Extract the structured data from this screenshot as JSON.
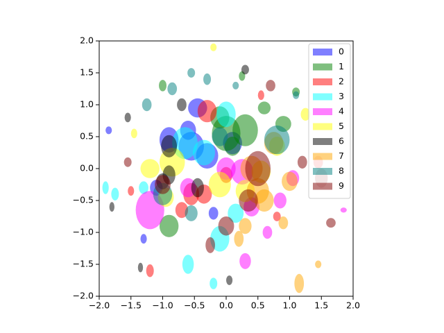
{
  "chart_data": {
    "type": "ellipse",
    "xlim": [
      -2,
      2
    ],
    "ylim": [
      -2,
      2
    ],
    "xticks": [
      {
        "value": -2,
        "label": "−2.0"
      },
      {
        "value": -1.5,
        "label": "−1.5"
      },
      {
        "value": -1,
        "label": "−1.0"
      },
      {
        "value": -0.5,
        "label": "−0.5"
      },
      {
        "value": 0,
        "label": "0.0"
      },
      0.5,
      {
        "value": 1,
        "label": "1.0"
      },
      1.5,
      {
        "value": 2,
        "label": "2.0"
      }
    ],
    "yticks": [
      {
        "value": -2,
        "label": "−2.0"
      },
      {
        "value": -1.5,
        "label": "−1.5"
      },
      {
        "value": -1,
        "label": "−1.0"
      },
      {
        "value": -0.5,
        "label": "−0.5"
      },
      {
        "value": 0,
        "label": "0.0"
      },
      0.5,
      {
        "value": 1,
        "label": "1.0"
      },
      1.5,
      {
        "value": 2,
        "label": "2.0"
      }
    ],
    "alpha": 0.5,
    "legend": "upper right",
    "series": [
      {
        "name": "0",
        "color": "#0000ff",
        "x": [
          -1.85,
          -0.9,
          -0.55,
          -0.3,
          -0.6,
          0.1,
          -1.1,
          -0.2,
          -0.45,
          -1.3
        ],
        "y": [
          0.6,
          0.45,
          0.35,
          0.2,
          0.6,
          0.4,
          -0.3,
          -0.7,
          0.95,
          -1.1
        ],
        "widths": [
          0.1,
          0.3,
          0.4,
          0.35,
          0.25,
          0.3,
          0.2,
          0.15,
          0.3,
          0.1
        ],
        "heights": [
          0.12,
          0.4,
          0.45,
          0.4,
          0.3,
          0.35,
          0.25,
          0.2,
          0.3,
          0.15
        ]
      },
      {
        "name": "1",
        "color": "#008000",
        "x": [
          0.3,
          -0.1,
          0.1,
          0.6,
          -0.9,
          0.9,
          1.1,
          0.0,
          0.25,
          -1.0
        ],
        "y": [
          0.6,
          0.8,
          0.35,
          0.95,
          -0.9,
          0.7,
          1.2,
          0.55,
          1.45,
          1.3
        ],
        "widths": [
          0.4,
          0.3,
          0.25,
          0.2,
          0.3,
          0.25,
          0.12,
          0.45,
          0.1,
          0.12
        ],
        "heights": [
          0.5,
          0.35,
          0.3,
          0.2,
          0.35,
          0.25,
          0.14,
          0.55,
          0.15,
          0.18
        ]
      },
      {
        "name": "2",
        "color": "#ff0000",
        "x": [
          -0.3,
          -0.35,
          0.0,
          -0.7,
          -1.2,
          0.55,
          1.45,
          -0.55,
          -1.5,
          0.8
        ],
        "y": [
          0.9,
          -0.4,
          -0.1,
          -0.65,
          -1.6,
          1.15,
          0.1,
          -0.4,
          -0.35,
          -0.75
        ],
        "widths": [
          0.3,
          0.25,
          0.2,
          0.2,
          0.12,
          0.1,
          0.15,
          0.25,
          0.1,
          0.12
        ],
        "heights": [
          0.35,
          0.3,
          0.25,
          0.25,
          0.2,
          0.15,
          0.2,
          0.35,
          0.15,
          0.15
        ]
      },
      {
        "name": "3",
        "color": "#00ffff",
        "x": [
          -0.35,
          0.0,
          -1.75,
          -0.6,
          -0.1,
          -1.3,
          -1.9,
          0.15,
          -0.65,
          -0.2
        ],
        "y": [
          0.25,
          0.85,
          -0.4,
          -1.5,
          -1.1,
          -0.3,
          -0.3,
          -0.7,
          0.4,
          -1.8
        ],
        "widths": [
          0.35,
          0.3,
          0.12,
          0.18,
          0.3,
          0.15,
          0.1,
          0.25,
          0.4,
          0.12
        ],
        "heights": [
          0.4,
          0.4,
          0.2,
          0.3,
          0.4,
          0.2,
          0.2,
          0.3,
          0.5,
          0.18
        ]
      },
      {
        "name": "4",
        "color": "#ff00ff",
        "x": [
          -1.2,
          0.4,
          0.3,
          1.05,
          0.0,
          0.85,
          1.85,
          0.65,
          -0.6,
          0.25
        ],
        "y": [
          -0.65,
          -0.6,
          -1.45,
          -0.15,
          0.0,
          -0.5,
          -0.65,
          -1.0,
          -0.3,
          -0.05
        ],
        "widths": [
          0.45,
          0.25,
          0.18,
          0.2,
          0.3,
          0.2,
          0.1,
          0.15,
          0.25,
          0.35
        ],
        "heights": [
          0.6,
          0.3,
          0.25,
          0.25,
          0.35,
          0.25,
          0.08,
          0.2,
          0.3,
          0.4
        ]
      },
      {
        "name": "5",
        "color": "#ffff00",
        "x": [
          -0.85,
          -0.1,
          -1.2,
          1.25,
          0.55,
          -1.45,
          0.8,
          -0.2,
          -0.95,
          0.3
        ],
        "y": [
          0.1,
          -0.25,
          0.0,
          0.85,
          -0.05,
          0.55,
          0.35,
          1.9,
          -0.45,
          -0.35
        ],
        "widths": [
          0.4,
          0.35,
          0.3,
          0.15,
          0.3,
          0.1,
          0.25,
          0.1,
          0.25,
          0.3
        ],
        "heights": [
          0.45,
          0.4,
          0.3,
          0.2,
          0.35,
          0.15,
          0.3,
          0.12,
          0.3,
          0.35
        ]
      },
      {
        "name": "6",
        "color": "#000000",
        "x": [
          -0.9,
          -1.55,
          -1.0,
          -0.45,
          -0.7,
          0.3,
          -1.8,
          -1.35,
          -0.9,
          0.05
        ],
        "y": [
          0.35,
          0.8,
          -0.2,
          -0.3,
          1.0,
          1.55,
          -0.6,
          -1.55,
          -0.1,
          -1.75
        ],
        "widths": [
          0.25,
          0.1,
          0.2,
          0.2,
          0.15,
          0.12,
          0.08,
          0.08,
          0.2,
          0.1
        ],
        "heights": [
          0.35,
          0.15,
          0.25,
          0.3,
          0.2,
          0.15,
          0.15,
          0.15,
          0.3,
          0.15
        ]
      },
      {
        "name": "7",
        "color": "#ffa500",
        "x": [
          0.5,
          1.15,
          0.6,
          0.3,
          1.0,
          0.9,
          0.75,
          1.45,
          0.4,
          0.2
        ],
        "y": [
          -0.35,
          -1.8,
          -0.5,
          -0.9,
          -0.2,
          -0.85,
          0.4,
          -1.5,
          0.0,
          -1.1
        ],
        "widths": [
          0.35,
          0.15,
          0.3,
          0.2,
          0.25,
          0.15,
          0.3,
          0.1,
          0.35,
          0.15
        ],
        "heights": [
          0.4,
          0.3,
          0.35,
          0.25,
          0.3,
          0.2,
          0.35,
          0.12,
          0.4,
          0.25
        ]
      },
      {
        "name": "8",
        "color": "#008080",
        "x": [
          -0.55,
          0.8,
          -0.85,
          -0.3,
          1.1,
          -0.55,
          -1.0,
          -1.25,
          0.15,
          -0.1
        ],
        "y": [
          1.5,
          0.45,
          1.25,
          1.4,
          1.15,
          -0.7,
          -0.4,
          1.0,
          1.3,
          0.5
        ],
        "widths": [
          0.12,
          0.4,
          0.15,
          0.12,
          0.1,
          0.2,
          0.3,
          0.15,
          0.1,
          0.25
        ],
        "heights": [
          0.15,
          0.45,
          0.2,
          0.18,
          0.12,
          0.25,
          0.35,
          0.2,
          0.12,
          0.3
        ]
      },
      {
        "name": "9",
        "color": "#800000",
        "x": [
          0.5,
          1.5,
          -1.0,
          0.35,
          1.65,
          0.0,
          -0.25,
          1.2,
          0.7,
          -1.55
        ],
        "y": [
          0.0,
          -0.15,
          -0.25,
          -0.5,
          -0.85,
          -0.9,
          -1.2,
          0.1,
          1.3,
          0.1
        ],
        "widths": [
          0.4,
          0.2,
          0.25,
          0.3,
          0.15,
          0.25,
          0.15,
          0.15,
          0.15,
          0.12
        ],
        "heights": [
          0.55,
          0.3,
          0.3,
          0.35,
          0.15,
          0.3,
          0.25,
          0.2,
          0.18,
          0.15
        ]
      }
    ]
  }
}
